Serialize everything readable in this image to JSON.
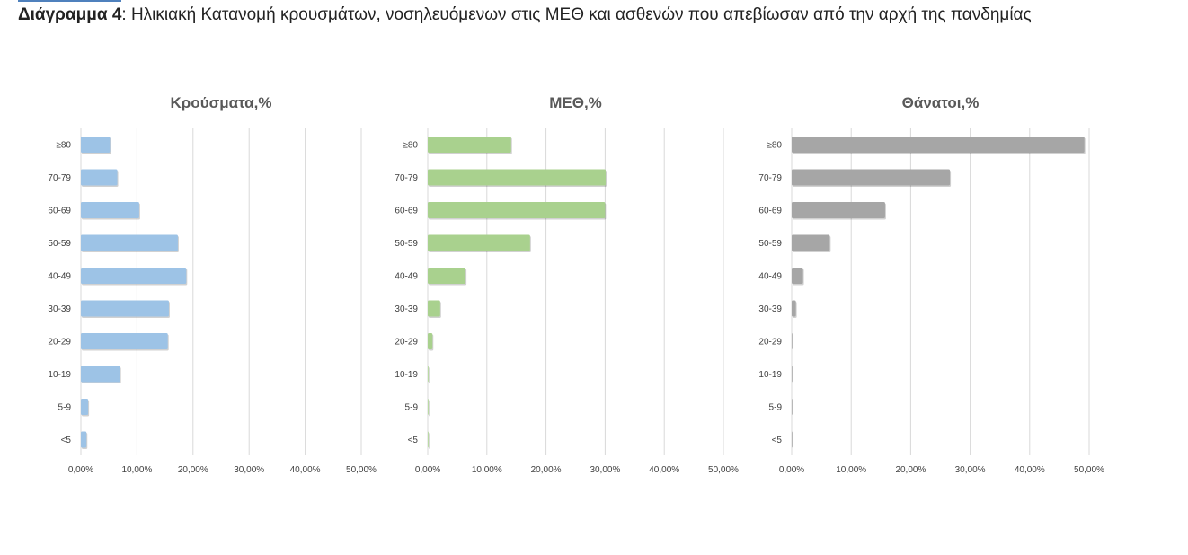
{
  "caption": {
    "bold": "Διάγραμμα 4",
    "text": ": Ηλικιακή Κατανομή κρουσμάτων, νοσηλευόμενων στις ΜΕΘ και ασθενών που απεβίωσαν από την αρχή της πανδημίας"
  },
  "colors": {
    "cases": "#9dc3e6",
    "icu": "#a9d18e",
    "deaths": "#a6a6a6"
  },
  "chart_data": [
    {
      "type": "bar",
      "orientation": "horizontal",
      "title": "Κρούσματα,%",
      "categories": [
        "≥80",
        "70-79",
        "60-69",
        "50-59",
        "40-49",
        "30-39",
        "20-29",
        "10-19",
        "5-9",
        "<5"
      ],
      "values": [
        5.2,
        6.5,
        10.4,
        17.3,
        18.8,
        15.7,
        15.5,
        7.0,
        1.3,
        1.0
      ],
      "xlim": [
        0,
        50
      ],
      "xticks": [
        "0,00%",
        "10,00%",
        "20,00%",
        "30,00%",
        "40,00%",
        "50,00%"
      ],
      "grid": true,
      "color": "#9dc3e6"
    },
    {
      "type": "bar",
      "orientation": "horizontal",
      "title": "ΜΕΘ,%",
      "categories": [
        "≥80",
        "70-79",
        "60-69",
        "50-59",
        "40-49",
        "30-39",
        "20-29",
        "10-19",
        "5-9",
        "<5"
      ],
      "values": [
        14.1,
        30.1,
        30.0,
        17.3,
        6.4,
        2.1,
        0.8,
        0.1,
        0.0,
        0.1
      ],
      "xlim": [
        0,
        50
      ],
      "xticks": [
        "0,00%",
        "10,00%",
        "20,00%",
        "30,00%",
        "40,00%",
        "50,00%"
      ],
      "grid": true,
      "color": "#a9d18e"
    },
    {
      "type": "bar",
      "orientation": "horizontal",
      "title": "Θάνατοι,%",
      "categories": [
        "≥80",
        "70-79",
        "60-69",
        "50-59",
        "40-49",
        "30-39",
        "20-29",
        "10-19",
        "5-9",
        "<5"
      ],
      "values": [
        49.2,
        26.6,
        15.7,
        6.4,
        1.9,
        0.7,
        0.1,
        0.0,
        0.0,
        0.0
      ],
      "xlim": [
        0,
        50
      ],
      "xticks": [
        "0,00%",
        "10,00%",
        "20,00%",
        "30,00%",
        "40,00%",
        "50,00%"
      ],
      "grid": true,
      "color": "#a6a6a6"
    }
  ]
}
